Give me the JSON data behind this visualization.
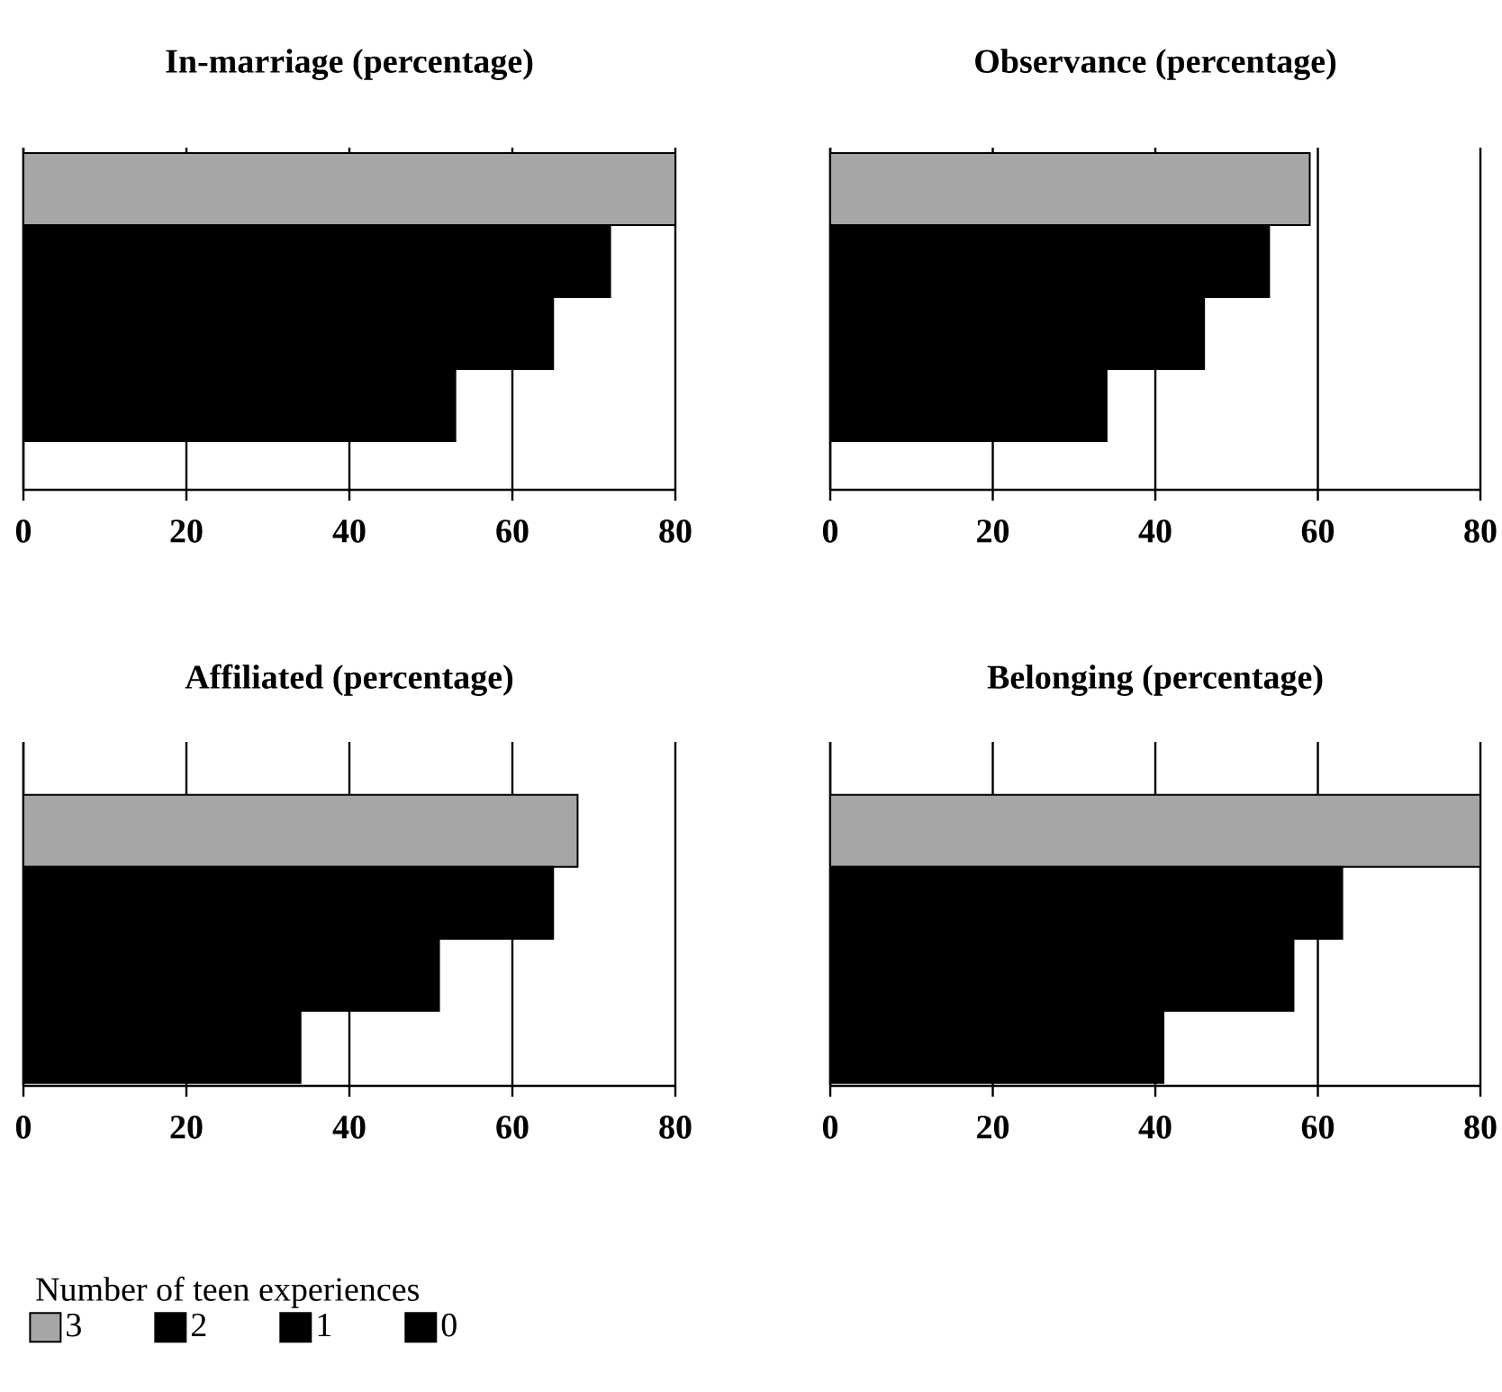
{
  "chart_data": [
    {
      "type": "bar",
      "orientation": "horizontal",
      "title": "In-marriage (percentage)",
      "categories": [
        null
      ],
      "xlim": [
        0,
        80
      ],
      "xticks": [
        0,
        20,
        40,
        60,
        80
      ],
      "grid": "x",
      "series": [
        {
          "color": "#a6a6a6",
          "values": [
            80
          ]
        },
        {
          "color": "#000000",
          "values": [
            72
          ]
        },
        {
          "color": "#000000",
          "values": [
            65
          ]
        },
        {
          "color": "#000000",
          "values": [
            53
          ]
        }
      ]
    },
    {
      "type": "bar",
      "orientation": "horizontal",
      "title": "Observance (percentage)",
      "categories": [
        null
      ],
      "xlim": [
        0,
        80
      ],
      "xticks": [
        0,
        20,
        40,
        60,
        80
      ],
      "grid": "x",
      "series": [
        {
          "color": "#a6a6a6",
          "values": [
            59
          ]
        },
        {
          "color": "#000000",
          "values": [
            54
          ]
        },
        {
          "color": "#000000",
          "values": [
            46
          ]
        },
        {
          "color": "#000000",
          "values": [
            34
          ]
        }
      ]
    },
    {
      "type": "bar",
      "orientation": "horizontal",
      "title": "Affiliated (percentage)",
      "categories": [
        null
      ],
      "xlim": [
        0,
        80
      ],
      "xticks": [
        0,
        20,
        40,
        60,
        80
      ],
      "grid": "x",
      "legend": "bottom",
      "legend_title": "Number of teen experiences",
      "series": [
        {
          "name": "3",
          "color": "#a6a6a6",
          "values": [
            68
          ]
        },
        {
          "name": "2",
          "color": "#000000",
          "values": [
            65
          ]
        },
        {
          "name": "1",
          "color": "#000000",
          "values": [
            51
          ]
        },
        {
          "name": "0",
          "color": "#000000",
          "values": [
            34
          ]
        }
      ]
    },
    {
      "type": "bar",
      "orientation": "horizontal",
      "title": "Belonging (percentage)",
      "categories": [
        null
      ],
      "xlim": [
        0,
        80
      ],
      "xticks": [
        0,
        20,
        40,
        60,
        80
      ],
      "grid": "x",
      "series": [
        {
          "color": "#a6a6a6",
          "values": [
            80
          ]
        },
        {
          "color": "#000000",
          "values": [
            63
          ]
        },
        {
          "color": "#000000",
          "values": [
            57
          ]
        },
        {
          "color": "#000000",
          "values": [
            41
          ]
        }
      ]
    }
  ]
}
